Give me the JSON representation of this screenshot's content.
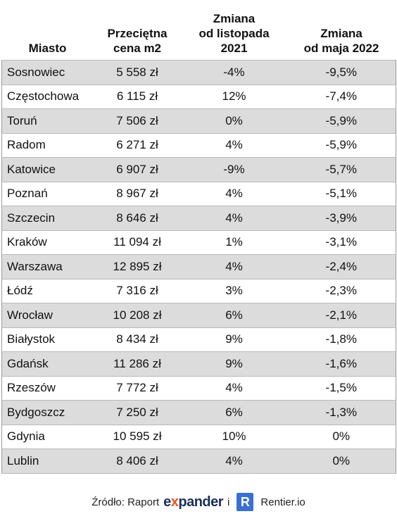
{
  "table": {
    "header": [
      "Miasto",
      "Przeciętna\ncena m2",
      "Zmiana\nod listopada\n2021",
      "Zmiana\nod maja 2022"
    ],
    "rows": [
      [
        "Sosnowiec",
        "5 558 zł",
        "-4%",
        "-9,5%"
      ],
      [
        "Częstochowa",
        "6 115 zł",
        "12%",
        "-7,4%"
      ],
      [
        "Toruń",
        "7 506 zł",
        "0%",
        "-5,9%"
      ],
      [
        "Radom",
        "6 271 zł",
        "4%",
        "-5,9%"
      ],
      [
        "Katowice",
        "6 907 zł",
        "-9%",
        "-5,7%"
      ],
      [
        "Poznań",
        "8 967 zł",
        "4%",
        "-5,1%"
      ],
      [
        "Szczecin",
        "8 646 zł",
        "4%",
        "-3,9%"
      ],
      [
        "Kraków",
        "11 094 zł",
        "1%",
        "-3,1%"
      ],
      [
        "Warszawa",
        "12 895 zł",
        "4%",
        "-2,4%"
      ],
      [
        "Łódź",
        "7 316 zł",
        "3%",
        "-2,3%"
      ],
      [
        "Wrocław",
        "10 208 zł",
        "6%",
        "-2,1%"
      ],
      [
        "Białystok",
        "8 434 zł",
        "9%",
        "-1,8%"
      ],
      [
        "Gdańsk",
        "11 286 zł",
        "9%",
        "-1,6%"
      ],
      [
        "Rzeszów",
        "7 772 zł",
        "4%",
        "-1,5%"
      ],
      [
        "Bydgoszcz",
        "7 250 zł",
        "6%",
        "-1,3%"
      ],
      [
        "Gdynia",
        "10 595 zł",
        "10%",
        "0%"
      ],
      [
        "Lublin",
        "8 406 zł",
        "4%",
        "0%"
      ]
    ]
  },
  "footer": {
    "source": "Źródło: Raport",
    "logo_parts": [
      "e",
      "x",
      "pander"
    ],
    "conjunction": "i",
    "badge": "R",
    "brand": "Rentier.io"
  }
}
